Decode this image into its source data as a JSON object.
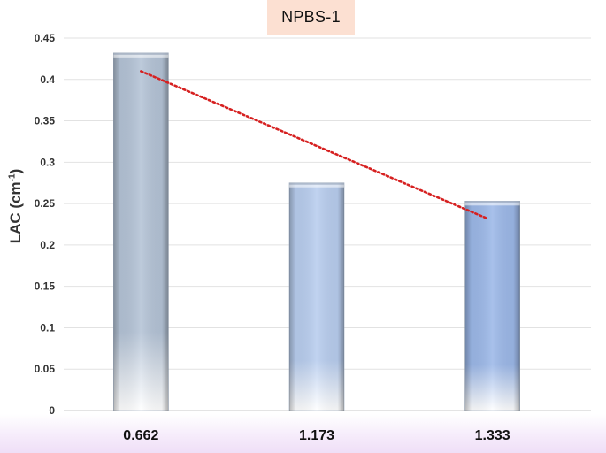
{
  "chart_data": {
    "type": "bar",
    "title": "NPBS-1",
    "ylabel": {
      "main": "LAC (cm",
      "sup": "-1",
      "close": ")"
    },
    "xlabel": "",
    "categories": [
      "0.662",
      "1.173",
      "1.333"
    ],
    "series": [
      {
        "values": [
          0.432,
          0.275,
          0.253
        ]
      }
    ],
    "trendline": {
      "type": "linear",
      "style": "dotted",
      "color": "#d62020",
      "start": 0.41,
      "end": 0.232
    },
    "ylim": [
      0,
      0.45
    ],
    "yticks": [
      "0",
      "0.05",
      "0.1",
      "0.15",
      "0.2",
      "0.25",
      "0.3",
      "0.35",
      "0.4",
      "0.45"
    ],
    "grid": true,
    "bar_colors": [
      "#b4c3d6",
      "#b8cdee",
      "#9cb8e8"
    ]
  }
}
